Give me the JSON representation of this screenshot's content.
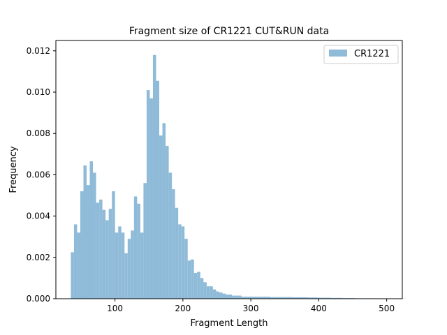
{
  "chart_data": {
    "type": "bar",
    "title": "Fragment size of CR1221 CUT&RUN data",
    "xlabel": "Fragment Length",
    "ylabel": "Frequency",
    "xlim": [
      13,
      523
    ],
    "ylim": [
      0,
      0.0125
    ],
    "xticks": [
      100,
      200,
      300,
      400,
      500
    ],
    "yticks": [
      0.0,
      0.002,
      0.004,
      0.006,
      0.008,
      0.01,
      0.012
    ],
    "ytick_labels": [
      "0.000",
      "0.002",
      "0.004",
      "0.006",
      "0.008",
      "0.010",
      "0.012"
    ],
    "grid": false,
    "legend_position": "top-right",
    "series": [
      {
        "name": "CR1221",
        "color": "#8fbbd9",
        "bin_start": 35,
        "bin_width": 4.65,
        "values": [
          0.00225,
          0.0036,
          0.0032,
          0.0052,
          0.00645,
          0.0055,
          0.00665,
          0.0061,
          0.00465,
          0.0048,
          0.0043,
          0.0038,
          0.00435,
          0.0052,
          0.0032,
          0.0035,
          0.0032,
          0.0022,
          0.0029,
          0.0033,
          0.00495,
          0.0046,
          0.0032,
          0.0056,
          0.0101,
          0.0097,
          0.0118,
          0.01055,
          0.0079,
          0.0085,
          0.0074,
          0.0061,
          0.0053,
          0.0044,
          0.0036,
          0.0035,
          0.0029,
          0.00185,
          0.0019,
          0.00125,
          0.0013,
          0.001,
          0.0008,
          0.0006,
          0.0006,
          0.00045,
          0.00035,
          0.0003,
          0.00025,
          0.0002,
          0.0002,
          0.00015,
          0.00015,
          0.00015,
          0.0001,
          0.0001,
          0.0001,
          0.0001,
          0.0001,
          0.0001,
          0.0001,
          0.0001,
          0.0001,
          8e-05,
          8e-05,
          8e-05,
          8e-05,
          8e-05,
          8e-05,
          8e-05,
          7e-05,
          7e-05,
          7e-05,
          7e-05,
          7e-05,
          6e-05,
          6e-05,
          6e-05,
          5e-05,
          5e-05,
          5e-05,
          5e-05,
          4e-05,
          4e-05,
          4e-05,
          4e-05,
          3e-05,
          3e-05,
          3e-05,
          3e-05,
          2e-05,
          2e-05,
          2e-05,
          2e-05,
          2e-05,
          2e-05,
          2e-05,
          1e-05,
          1e-05,
          1e-05,
          1e-05,
          1e-05,
          1e-05,
          1e-05,
          1e-05,
          1e-05
        ]
      }
    ]
  }
}
